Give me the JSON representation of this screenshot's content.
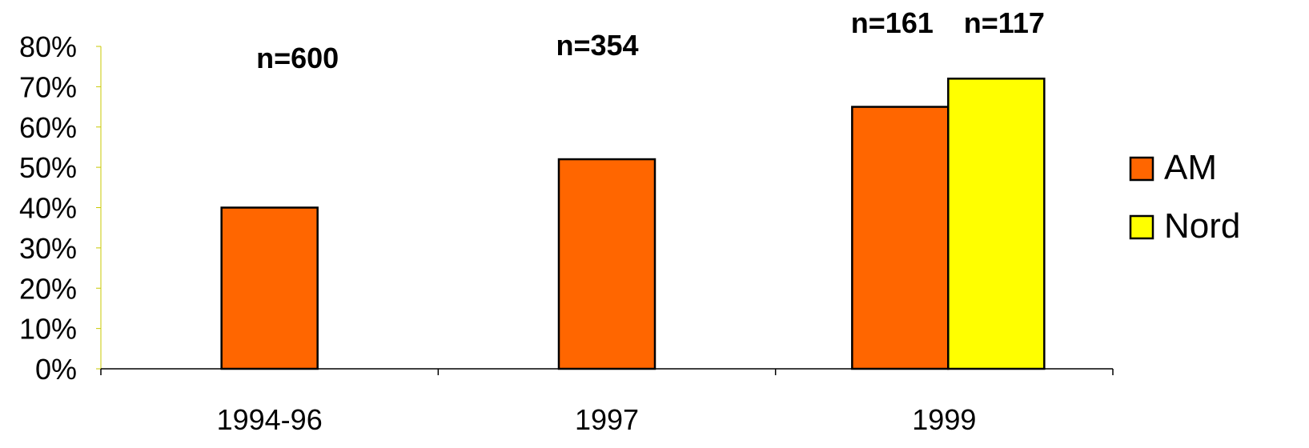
{
  "chart_data": {
    "type": "bar",
    "categories": [
      "1994-96",
      "1997",
      "1999"
    ],
    "series": [
      {
        "name": "AM",
        "color": "#ff6600",
        "values": [
          40,
          52,
          65
        ]
      },
      {
        "name": "Nord",
        "color": "#ffff00",
        "values": [
          null,
          null,
          72
        ]
      }
    ],
    "y_unit": "%",
    "ylim": [
      0,
      80
    ],
    "y_ticks": [
      "0%",
      "10%",
      "20%",
      "30%",
      "40%",
      "50%",
      "60%",
      "70%",
      "80%"
    ],
    "y_tick_values": [
      0,
      10,
      20,
      30,
      40,
      50,
      60,
      70,
      80
    ],
    "annotations": [
      {
        "category": "1994-96",
        "series": "AM",
        "text": "n=600"
      },
      {
        "category": "1997",
        "series": "AM",
        "text": "n=354"
      },
      {
        "category": "1999",
        "series": "AM",
        "text": "n=161"
      },
      {
        "category": "1999",
        "series": "Nord",
        "text": "n=117"
      }
    ],
    "legend": {
      "placement": "right",
      "entries": [
        "AM",
        "Nord"
      ]
    },
    "grid": false,
    "title": "",
    "xlabel": "",
    "ylabel": ""
  }
}
